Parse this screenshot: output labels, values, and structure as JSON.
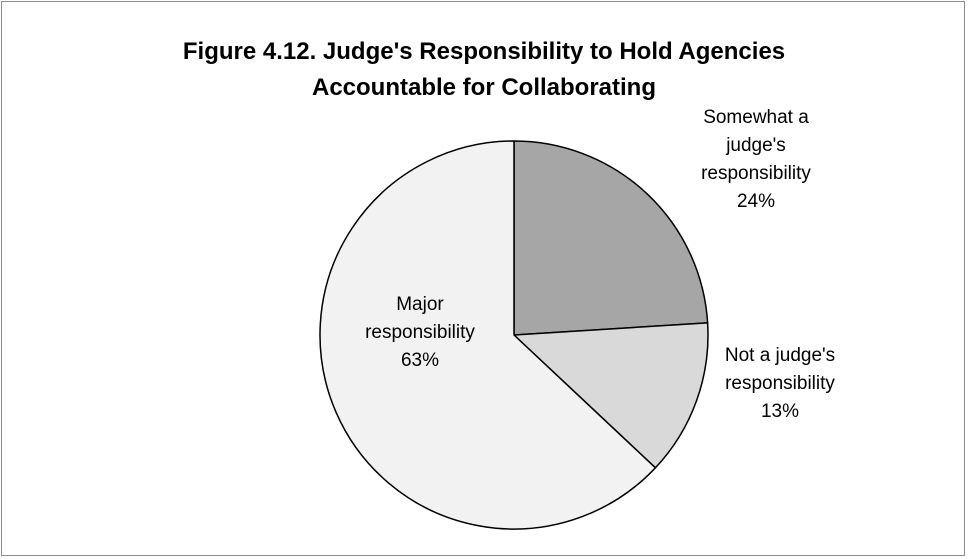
{
  "chart_data": {
    "type": "pie",
    "title_lines": [
      "Figure 4.12. Judge's Responsibility to Hold Agencies",
      "Accountable for Collaborating"
    ],
    "slices": [
      {
        "label_lines": [
          "Somewhat a",
          "judge's",
          "responsibility"
        ],
        "value": 24,
        "value_label": "24%",
        "color": "#a6a6a6"
      },
      {
        "label_lines": [
          "Not a judge's",
          "responsibility"
        ],
        "value": 13,
        "value_label": "13%",
        "color": "#d9d9d9"
      },
      {
        "label_lines": [
          "Major",
          "responsibility"
        ],
        "value": 63,
        "value_label": "63%",
        "color": "#f2f2f2"
      }
    ],
    "start_angle_deg": 0,
    "direction": "clockwise",
    "legend": "none",
    "edge_color": "#000000"
  }
}
